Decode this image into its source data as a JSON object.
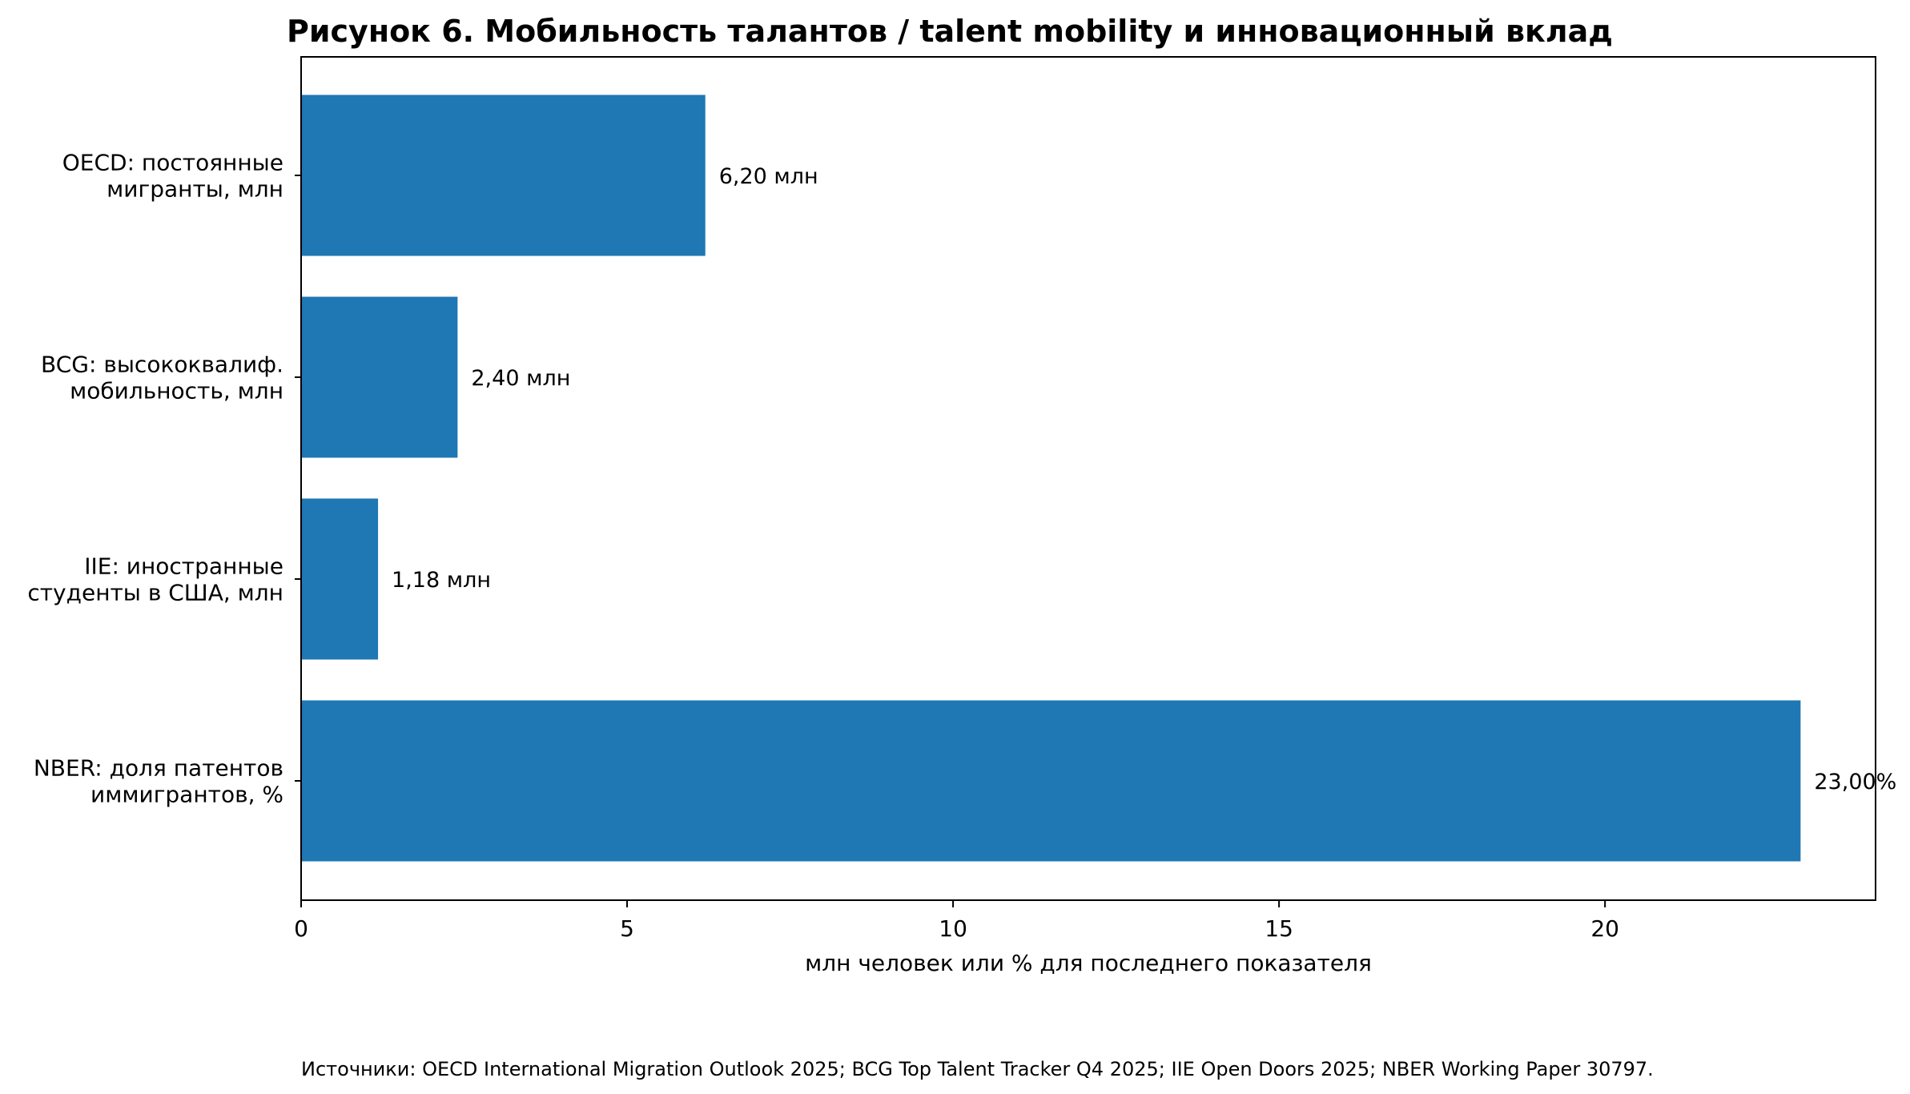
{
  "chart_data": {
    "type": "bar",
    "orientation": "horizontal",
    "title": "Рисунок 6. Мобильность талантов / talent mobility и инновационный вклад",
    "xlabel": "млн человек или % для последнего показателя",
    "ylabel": "",
    "xlim": [
      0,
      24.15
    ],
    "xticks": [
      0,
      5,
      10,
      15,
      20
    ],
    "xtick_labels": [
      "0",
      "5",
      "10",
      "15",
      "20"
    ],
    "grid": false,
    "legend": "none",
    "bar_color": "#1f77b4",
    "categories": [
      [
        "OECD: постоянные",
        "мигранты, млн"
      ],
      [
        "BCG: высококвалиф.",
        "мобильность, млн"
      ],
      [
        "IIE: иностранные",
        "студенты в США, млн"
      ],
      [
        "NBER: доля патентов",
        "иммигрантов, %"
      ]
    ],
    "values": [
      6.2,
      2.4,
      1.18,
      23.0
    ],
    "data_labels": [
      "6,20 млн",
      "2,40 млн",
      "1,18 млн",
      "23,00%"
    ],
    "footnote": "Источники: OECD International Migration Outlook 2025; BCG Top Talent Tracker Q4 2025; IIE Open Doors 2025; NBER Working Paper 30797."
  }
}
